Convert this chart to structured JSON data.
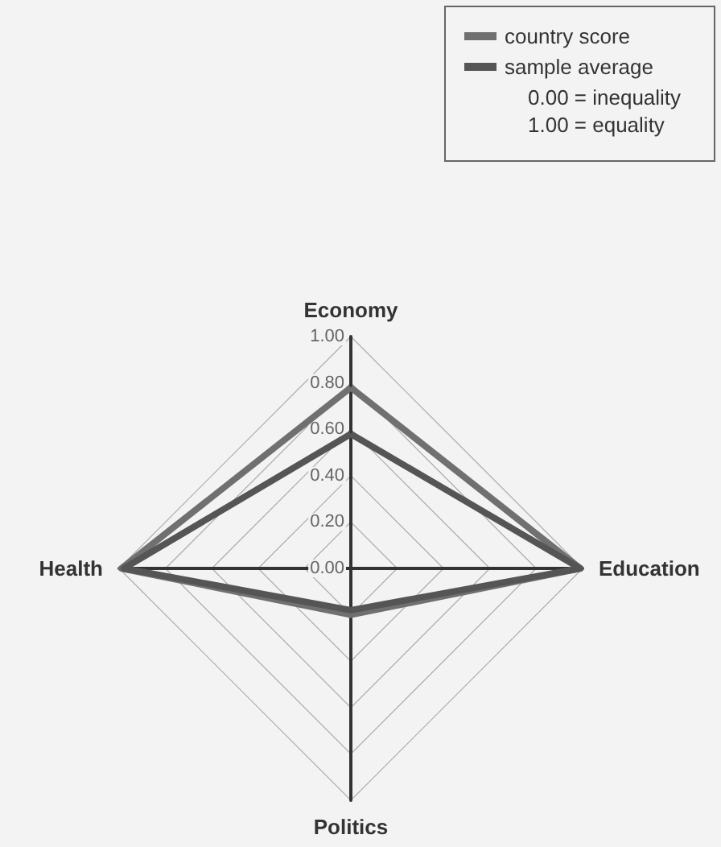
{
  "chart_data": {
    "type": "radar",
    "categories": [
      "Economy",
      "Education",
      "Politics",
      "Health"
    ],
    "series": [
      {
        "name": "country score",
        "color": "#707070",
        "values": [
          0.78,
          0.99,
          0.2,
          0.99
        ]
      },
      {
        "name": "sample average",
        "color": "#555555",
        "values": [
          0.58,
          0.99,
          0.18,
          0.98
        ]
      }
    ],
    "ylim": [
      0,
      1
    ],
    "yticks": [
      {
        "value": 0,
        "label": "0.00"
      },
      {
        "value": 0.2,
        "label": "0.20"
      },
      {
        "value": 0.4,
        "label": "0.40"
      },
      {
        "value": 0.6,
        "label": "0.60"
      },
      {
        "value": 0.8,
        "label": "0.80"
      },
      {
        "value": 1,
        "label": "1.00"
      }
    ],
    "legend": "top right",
    "annotations": [
      "0.00 = inequality",
      "1.00 = equality"
    ]
  }
}
